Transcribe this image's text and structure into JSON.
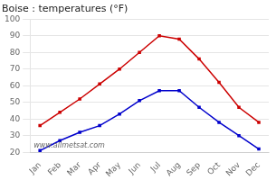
{
  "chart_data": {
    "type": "line",
    "title": "Boise : temperatures (°F)",
    "categories": [
      "Jan",
      "Feb",
      "Mar",
      "Apr",
      "May",
      "Jun",
      "Jul",
      "Aug",
      "Sep",
      "Oct",
      "Nov",
      "Dec"
    ],
    "series": [
      {
        "color": "#cc0000",
        "marker": "square",
        "values": [
          36,
          44,
          52,
          61,
          70,
          80,
          90,
          88,
          76,
          62,
          47,
          38
        ]
      },
      {
        "color": "#0000cc",
        "marker": "square",
        "values": [
          21,
          27,
          32,
          36,
          43,
          51,
          57,
          57,
          47,
          38,
          30,
          22
        ]
      }
    ],
    "ylim": [
      20,
      100
    ],
    "yticks": [
      20,
      30,
      40,
      50,
      60,
      70,
      80,
      90,
      100
    ],
    "grid": true,
    "annotation": "www.allmetsat.com"
  }
}
